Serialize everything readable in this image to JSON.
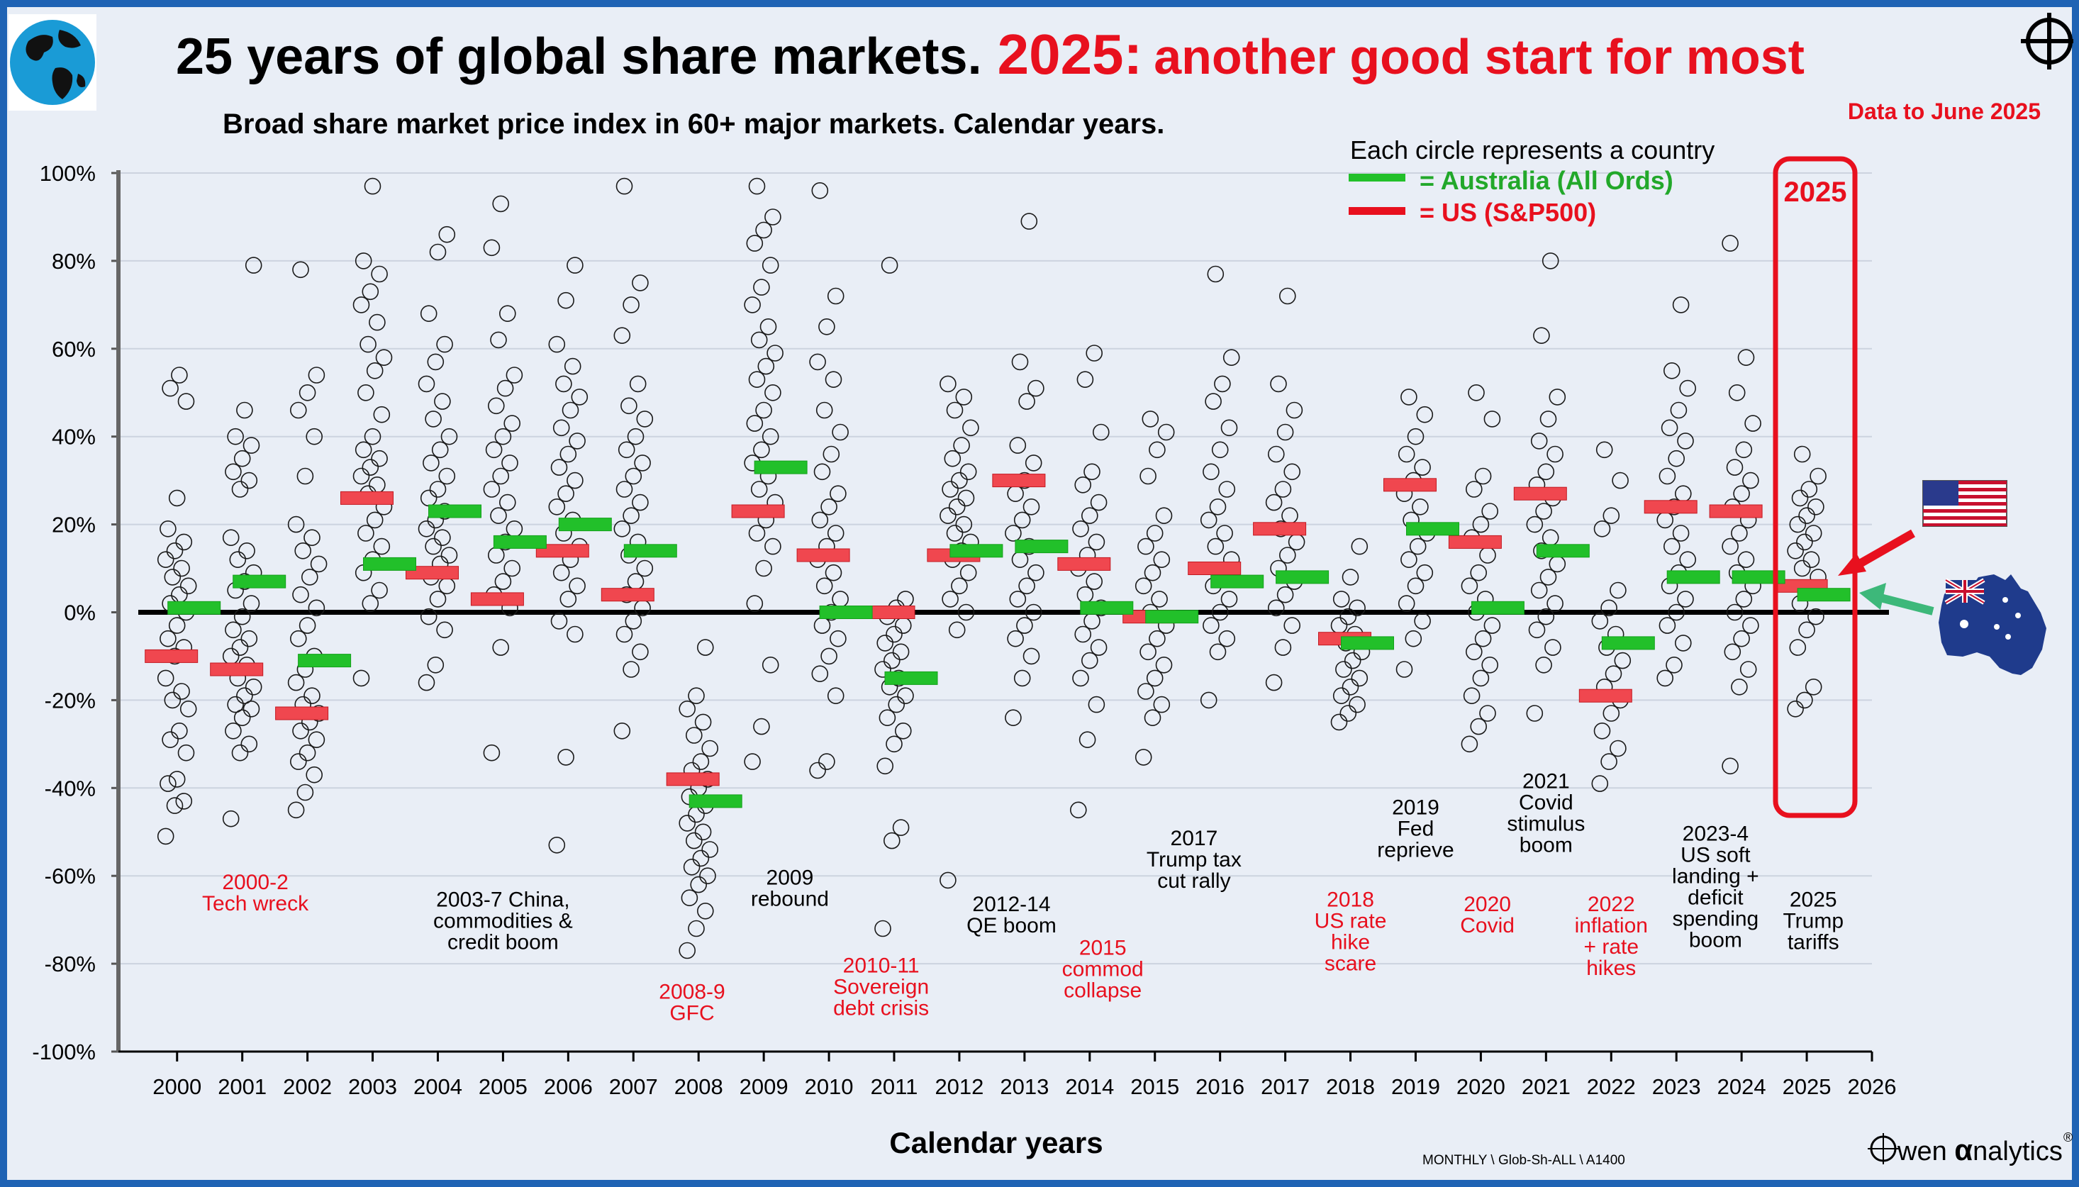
{
  "header": {
    "title_black": "25 years of global share markets.",
    "title_red_year": "2025:",
    "title_red_rest": "another good start for most",
    "subtitle": "Broad share market price index in 60+ major markets. Calendar years.",
    "data_note": "Data to June 2025"
  },
  "legend": {
    "heading": "Each circle represents a country",
    "australia": "= Australia (All Ords)",
    "us": "= US (S&P500)"
  },
  "footer": {
    "source_code": "MONTHLY \\ Glob-Sh-ALL \\  A1400",
    "brand_a": "wen ",
    "brand_alpha": "α",
    "brand_b": "nalytics",
    "brand_reg": "®"
  },
  "highlight_label": "2025",
  "colors": {
    "australia": "#22c02a",
    "us": "#f0474f",
    "accent_red": "#e8101e",
    "frame_blue": "#1f63b4",
    "background": "#e9eef6"
  },
  "icons": [
    "globe-logo-icon",
    "crosshair-logo-icon",
    "us-flag-icon",
    "australia-flag-icon"
  ],
  "chart_data": {
    "type": "scatter",
    "xlabel": "Calendar years",
    "ylabel": "",
    "xlim": [
      1999.1,
      2026
    ],
    "ylim": [
      -100,
      100
    ],
    "x_ticks": [
      "2000",
      "2001",
      "2002",
      "2003",
      "2004",
      "2005",
      "2006",
      "2007",
      "2008",
      "2009",
      "2010",
      "2011",
      "2012",
      "2013",
      "2014",
      "2015",
      "2016",
      "2017",
      "2018",
      "2019",
      "2020",
      "2021",
      "2022",
      "2023",
      "2024",
      "2025",
      "2026"
    ],
    "y_ticks": [
      "100%",
      "80%",
      "60%",
      "40%",
      "20%",
      "0%",
      "-20%",
      "-40%",
      "-60%",
      "-80%",
      "-100%"
    ],
    "grid": true,
    "years": [
      2000,
      2001,
      2002,
      2003,
      2004,
      2005,
      2006,
      2007,
      2008,
      2009,
      2010,
      2011,
      2012,
      2013,
      2014,
      2015,
      2016,
      2017,
      2018,
      2019,
      2020,
      2021,
      2022,
      2023,
      2024,
      2025
    ],
    "series": [
      {
        "name": "= Australia (All Ords)",
        "values": [
          1,
          7,
          -11,
          11,
          23,
          16,
          20,
          14,
          -43,
          33,
          0,
          -15,
          14,
          15,
          1,
          -1,
          7,
          8,
          -7,
          19,
          1,
          14,
          -7,
          8,
          8,
          4
        ]
      },
      {
        "name": "= US (S&P500)",
        "values": [
          -10,
          -13,
          -23,
          26,
          9,
          3,
          14,
          4,
          -38,
          23,
          13,
          0,
          13,
          30,
          11,
          -1,
          10,
          19,
          -6,
          29,
          16,
          27,
          -19,
          24,
          23,
          6
        ]
      }
    ],
    "countries": {
      "2000": [
        -51,
        -44,
        -43,
        -39,
        -38,
        -32,
        -29,
        -27,
        -22,
        -20,
        -18,
        -15,
        -10,
        -8,
        -6,
        -3,
        0,
        2,
        4,
        6,
        8,
        10,
        12,
        14,
        16,
        19,
        26,
        48,
        51,
        54
      ],
      "2001": [
        -47,
        -32,
        -30,
        -27,
        -24,
        -22,
        -21,
        -19,
        -17,
        -15,
        -12,
        -10,
        -8,
        -6,
        -4,
        -1,
        2,
        5,
        7,
        9,
        12,
        14,
        17,
        28,
        30,
        32,
        35,
        38,
        40,
        46,
        79
      ],
      "2002": [
        -45,
        -41,
        -37,
        -34,
        -32,
        -29,
        -27,
        -25,
        -23,
        -21,
        -19,
        -16,
        -13,
        -10,
        -6,
        -3,
        1,
        4,
        8,
        11,
        14,
        17,
        20,
        31,
        40,
        46,
        50,
        54,
        78
      ],
      "2003": [
        -15,
        2,
        5,
        9,
        12,
        15,
        18,
        21,
        24,
        27,
        29,
        31,
        33,
        35,
        37,
        40,
        45,
        50,
        55,
        58,
        61,
        66,
        70,
        73,
        77,
        80,
        97
      ],
      "2004": [
        -16,
        -12,
        -4,
        -1,
        3,
        6,
        8,
        11,
        13,
        15,
        17,
        19,
        21,
        23,
        26,
        28,
        31,
        34,
        37,
        40,
        44,
        48,
        52,
        57,
        61,
        68,
        82,
        86
      ],
      "2005": [
        -32,
        -8,
        1,
        4,
        7,
        10,
        13,
        16,
        19,
        22,
        25,
        28,
        31,
        34,
        37,
        40,
        43,
        47,
        51,
        54,
        62,
        68,
        83,
        93
      ],
      "2006": [
        -53,
        -33,
        -5,
        -2,
        3,
        6,
        9,
        12,
        15,
        18,
        21,
        24,
        27,
        30,
        33,
        36,
        39,
        42,
        46,
        49,
        52,
        56,
        61,
        71,
        79
      ],
      "2007": [
        -27,
        -13,
        -9,
        -5,
        -2,
        1,
        4,
        7,
        10,
        13,
        16,
        19,
        22,
        25,
        28,
        31,
        34,
        37,
        40,
        44,
        47,
        52,
        63,
        70,
        75,
        97
      ],
      "2008": [
        -77,
        -72,
        -68,
        -65,
        -62,
        -60,
        -58,
        -56,
        -54,
        -52,
        -50,
        -48,
        -46,
        -44,
        -42,
        -40,
        -38,
        -36,
        -34,
        -31,
        -28,
        -25,
        -22,
        -19,
        -8
      ],
      "2009": [
        -34,
        -26,
        -12,
        2,
        10,
        15,
        18,
        21,
        25,
        28,
        31,
        34,
        37,
        40,
        43,
        46,
        50,
        53,
        56,
        59,
        62,
        65,
        70,
        74,
        79,
        84,
        87,
        90,
        97
      ],
      "2010": [
        -36,
        -34,
        -19,
        -14,
        -10,
        -6,
        -3,
        0,
        3,
        6,
        9,
        12,
        15,
        18,
        21,
        24,
        27,
        32,
        36,
        41,
        46,
        53,
        57,
        65,
        72,
        96
      ],
      "2011": [
        -72,
        -52,
        -49,
        -35,
        -30,
        -27,
        -24,
        -21,
        -19,
        -17,
        -15,
        -13,
        -11,
        -9,
        -7,
        -5,
        -3,
        -1,
        1,
        3,
        79
      ],
      "2012": [
        -61,
        -4,
        0,
        3,
        6,
        9,
        12,
        14,
        16,
        18,
        20,
        22,
        24,
        26,
        28,
        30,
        32,
        35,
        38,
        42,
        46,
        49,
        52
      ],
      "2013": [
        -24,
        -15,
        -10,
        -6,
        -3,
        0,
        3,
        6,
        9,
        12,
        15,
        18,
        21,
        24,
        27,
        30,
        34,
        38,
        48,
        51,
        57,
        89
      ],
      "2014": [
        -45,
        -29,
        -21,
        -15,
        -11,
        -8,
        -5,
        -2,
        1,
        4,
        7,
        10,
        13,
        16,
        19,
        22,
        25,
        29,
        32,
        41,
        53,
        59
      ],
      "2015": [
        -33,
        -24,
        -21,
        -18,
        -15,
        -12,
        -9,
        -6,
        -3,
        0,
        3,
        6,
        9,
        12,
        15,
        18,
        22,
        31,
        37,
        41,
        44
      ],
      "2016": [
        -20,
        -9,
        -6,
        -3,
        0,
        3,
        6,
        9,
        12,
        15,
        18,
        21,
        24,
        28,
        32,
        37,
        42,
        48,
        52,
        58,
        77
      ],
      "2017": [
        -16,
        -8,
        -3,
        1,
        4,
        7,
        10,
        13,
        16,
        19,
        22,
        25,
        28,
        32,
        36,
        41,
        46,
        52,
        72
      ],
      "2018": [
        -25,
        -23,
        -21,
        -19,
        -17,
        -15,
        -13,
        -11,
        -9,
        -7,
        -5,
        -3,
        -1,
        1,
        3,
        8,
        15
      ],
      "2019": [
        -13,
        -6,
        -2,
        2,
        6,
        9,
        12,
        15,
        18,
        21,
        24,
        27,
        30,
        33,
        36,
        40,
        45,
        49
      ],
      "2020": [
        -30,
        -26,
        -23,
        -19,
        -15,
        -12,
        -9,
        -6,
        -3,
        0,
        3,
        6,
        9,
        13,
        17,
        20,
        23,
        28,
        31,
        44,
        50
      ],
      "2021": [
        -23,
        -12,
        -8,
        -4,
        -1,
        2,
        5,
        8,
        11,
        14,
        17,
        20,
        23,
        26,
        29,
        32,
        36,
        39,
        44,
        49,
        63,
        80
      ],
      "2022": [
        -39,
        -34,
        -31,
        -27,
        -23,
        -20,
        -17,
        -14,
        -11,
        -8,
        -5,
        -2,
        1,
        5,
        19,
        22,
        30,
        37
      ],
      "2023": [
        -15,
        -12,
        -7,
        -3,
        0,
        3,
        6,
        9,
        12,
        15,
        18,
        21,
        24,
        27,
        31,
        35,
        39,
        42,
        46,
        51,
        55,
        70
      ],
      "2024": [
        -35,
        -17,
        -13,
        -9,
        -6,
        -3,
        0,
        3,
        6,
        9,
        12,
        15,
        18,
        21,
        24,
        27,
        30,
        33,
        37,
        43,
        50,
        58,
        84
      ],
      "2025": [
        -22,
        -20,
        -17,
        -8,
        -4,
        -1,
        2,
        5,
        8,
        10,
        12,
        14,
        16,
        18,
        20,
        22,
        24,
        26,
        28,
        31,
        36
      ]
    },
    "annotations": [
      {
        "text": "2000-2\nTech wreck",
        "x": 2001.2,
        "y": -63,
        "color": "red"
      },
      {
        "text": "2003-7 China,\ncommodities &\ncredit boom",
        "x": 2005,
        "y": -67,
        "color": "black"
      },
      {
        "text": "2008-9\nGFC",
        "x": 2007.9,
        "y": -88,
        "color": "red"
      },
      {
        "text": "2009\nrebound",
        "x": 2009.4,
        "y": -62,
        "color": "black"
      },
      {
        "text": "2010-11\nSovereign\ndebt crisis",
        "x": 2010.8,
        "y": -82,
        "color": "red"
      },
      {
        "text": "2012-14\nQE boom",
        "x": 2012.8,
        "y": -68,
        "color": "black"
      },
      {
        "text": "2015\ncommod\ncollapse",
        "x": 2014.2,
        "y": -78,
        "color": "red"
      },
      {
        "text": "2017\nTrump tax\ncut rally",
        "x": 2015.6,
        "y": -53,
        "color": "black"
      },
      {
        "text": "2018\nUS rate\nhike\nscare",
        "x": 2018,
        "y": -67,
        "color": "red"
      },
      {
        "text": "2019\nFed\nreprieve",
        "x": 2019,
        "y": -46,
        "color": "black"
      },
      {
        "text": "2020\nCovid",
        "x": 2020.1,
        "y": -68,
        "color": "red"
      },
      {
        "text": "2021\nCovid\nstimulus\nboom",
        "x": 2021,
        "y": -40,
        "color": "black"
      },
      {
        "text": "2022\ninflation\n+ rate\nhikes",
        "x": 2022,
        "y": -68,
        "color": "red"
      },
      {
        "text": "2023-4\nUS soft\nlanding +\ndeficit\nspending\nboom",
        "x": 2023.6,
        "y": -52,
        "color": "black"
      },
      {
        "text": "2025\nTrump\ntariffs",
        "x": 2025.1,
        "y": -67,
        "color": "black"
      }
    ]
  }
}
